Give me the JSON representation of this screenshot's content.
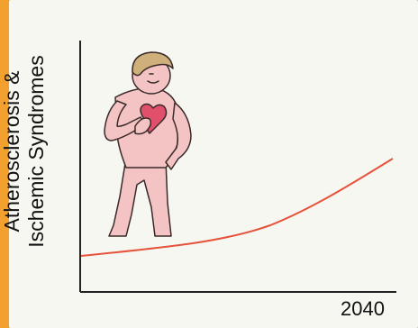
{
  "colors": {
    "background_border": "#f2a12e",
    "panel": "#f7f7f2",
    "curve": "#e5533a",
    "axis": "#222222",
    "skin": "#f4c4c4",
    "skin_outline": "#3a2a2a",
    "hair": "#cfb07a",
    "heart": "#e0506a"
  },
  "axis": {
    "y_label_line1": "Atherosclerosis &",
    "y_label_line2": "Ischemic Syndromes",
    "x_tick": "2040"
  },
  "illustration": {
    "figure": "person-holding-heart-icon"
  }
}
